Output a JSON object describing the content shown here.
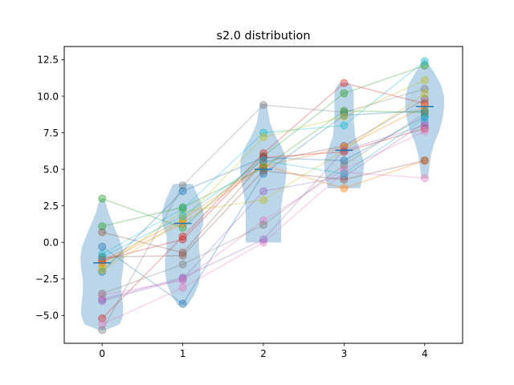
{
  "chart_data": {
    "type": "violin",
    "title": "s2.0 distribution",
    "xlabel": "",
    "ylabel": "",
    "categories": [
      "0",
      "1",
      "2",
      "3",
      "4"
    ],
    "xticks": [
      "0",
      "1",
      "2",
      "3",
      "4"
    ],
    "yticks": [
      "−5.0",
      "−2.5",
      "0.0",
      "2.5",
      "5.0",
      "7.5",
      "10.0",
      "12.5"
    ],
    "ytick_values": [
      -5.0,
      -2.5,
      0.0,
      2.5,
      5.0,
      7.5,
      10.0,
      12.5
    ],
    "xlim": [
      -0.47,
      4.47
    ],
    "ylim": [
      -6.9,
      13.4
    ],
    "grid": false,
    "legend": "none",
    "violin_color": "#1f77b4",
    "median_color": "#1f77b4",
    "medians": [
      -1.4,
      1.3,
      5.0,
      6.3,
      9.3
    ],
    "violins": [
      {
        "min": -6.0,
        "max": 3.0,
        "profile": [
          [
            -6.0,
            0.04
          ],
          [
            -5.6,
            0.22
          ],
          [
            -5.0,
            0.26
          ],
          [
            -4.3,
            0.26
          ],
          [
            -3.5,
            0.24
          ],
          [
            -2.6,
            0.24
          ],
          [
            -1.8,
            0.26
          ],
          [
            -1.0,
            0.27
          ],
          [
            -0.3,
            0.25
          ],
          [
            0.4,
            0.2
          ],
          [
            1.2,
            0.14
          ],
          [
            2.0,
            0.08
          ],
          [
            2.6,
            0.05
          ],
          [
            3.0,
            0.02
          ]
        ]
      },
      {
        "min": -4.3,
        "max": 4.0,
        "profile": [
          [
            -4.3,
            0.06
          ],
          [
            -3.6,
            0.14
          ],
          [
            -2.8,
            0.2
          ],
          [
            -2.0,
            0.22
          ],
          [
            -1.2,
            0.22
          ],
          [
            -0.4,
            0.2
          ],
          [
            0.4,
            0.2
          ],
          [
            1.2,
            0.25
          ],
          [
            2.0,
            0.26
          ],
          [
            2.8,
            0.22
          ],
          [
            3.4,
            0.17
          ],
          [
            4.0,
            0.12
          ]
        ]
      },
      {
        "min": 0.0,
        "max": 9.5,
        "profile": [
          [
            0.0,
            0.22
          ],
          [
            0.8,
            0.22
          ],
          [
            1.6,
            0.22
          ],
          [
            2.4,
            0.22
          ],
          [
            3.2,
            0.24
          ],
          [
            4.0,
            0.27
          ],
          [
            5.0,
            0.29
          ],
          [
            5.8,
            0.28
          ],
          [
            6.6,
            0.22
          ],
          [
            7.4,
            0.14
          ],
          [
            8.2,
            0.08
          ],
          [
            8.9,
            0.06
          ],
          [
            9.5,
            0.04
          ]
        ]
      },
      {
        "min": 3.7,
        "max": 10.9,
        "profile": [
          [
            3.7,
            0.2
          ],
          [
            4.2,
            0.22
          ],
          [
            4.8,
            0.24
          ],
          [
            5.4,
            0.25
          ],
          [
            6.0,
            0.22
          ],
          [
            6.6,
            0.18
          ],
          [
            7.2,
            0.14
          ],
          [
            7.8,
            0.13
          ],
          [
            8.4,
            0.12
          ],
          [
            9.0,
            0.12
          ],
          [
            9.6,
            0.12
          ],
          [
            10.2,
            0.12
          ],
          [
            10.6,
            0.1
          ],
          [
            10.9,
            0.06
          ]
        ]
      },
      {
        "min": 4.4,
        "max": 12.5,
        "profile": [
          [
            4.4,
            0.04
          ],
          [
            5.2,
            0.06
          ],
          [
            6.0,
            0.08
          ],
          [
            6.8,
            0.12
          ],
          [
            7.6,
            0.18
          ],
          [
            8.4,
            0.22
          ],
          [
            9.2,
            0.24
          ],
          [
            10.0,
            0.24
          ],
          [
            10.8,
            0.2
          ],
          [
            11.6,
            0.12
          ],
          [
            12.1,
            0.06
          ],
          [
            12.5,
            0.02
          ]
        ]
      }
    ],
    "series": [
      {
        "color": "#1f77b4",
        "values": [
          -0.3,
          -4.2,
          4.7,
          8.7,
          9.0
        ]
      },
      {
        "color": "#ff7f0e",
        "values": [
          -1.3,
          1.6,
          5.3,
          3.7,
          5.6
        ]
      },
      {
        "color": "#2ca02c",
        "values": [
          3.0,
          1.0,
          5.9,
          10.2,
          12.1
        ]
      },
      {
        "color": "#d62728",
        "values": [
          -5.2,
          0.4,
          6.1,
          10.9,
          9.5
        ]
      },
      {
        "color": "#9467bd",
        "values": [
          -4.0,
          -2.5,
          3.5,
          4.5,
          8.2
        ]
      },
      {
        "color": "#8c564b",
        "values": [
          0.7,
          -0.7,
          5.5,
          6.6,
          9.8
        ]
      },
      {
        "color": "#e377c2",
        "values": [
          -5.6,
          -3.1,
          0.0,
          4.8,
          4.4
        ]
      },
      {
        "color": "#7f7f7f",
        "values": [
          -6.0,
          3.9,
          9.4,
          8.9,
          10.5
        ]
      },
      {
        "color": "#bcbd22",
        "values": [
          -1.7,
          2.1,
          2.9,
          6.3,
          10.2
        ]
      },
      {
        "color": "#17becf",
        "values": [
          -0.8,
          2.3,
          7.5,
          8.0,
          12.4
        ]
      },
      {
        "color": "#1f77b4",
        "values": [
          -2.0,
          3.5,
          5.8,
          5.6,
          8.6
        ]
      },
      {
        "color": "#ff7f0e",
        "values": [
          -1.4,
          1.3,
          5.2,
          6.5,
          9.3
        ]
      },
      {
        "color": "#2ca02c",
        "values": [
          1.1,
          2.4,
          5.1,
          9.0,
          8.9
        ]
      },
      {
        "color": "#d62728",
        "values": [
          -1.2,
          0.2,
          5.8,
          6.2,
          7.8
        ]
      },
      {
        "color": "#9467bd",
        "values": [
          -3.9,
          -2.4,
          0.2,
          6.3,
          8.0
        ]
      },
      {
        "color": "#8c564b",
        "values": [
          -1.0,
          -0.9,
          4.9,
          4.3,
          5.6
        ]
      },
      {
        "color": "#e377c2",
        "values": [
          -3.6,
          -2.6,
          1.5,
          5.0,
          7.6
        ]
      },
      {
        "color": "#7f7f7f",
        "values": [
          -3.5,
          -1.5,
          1.2,
          5.3,
          8.8
        ]
      },
      {
        "color": "#bcbd22",
        "values": [
          -1.9,
          1.5,
          7.2,
          8.6,
          11.1
        ]
      },
      {
        "color": "#17becf",
        "values": [
          -1.0,
          1.8,
          5.6,
          4.7,
          8.5
        ]
      }
    ]
  }
}
